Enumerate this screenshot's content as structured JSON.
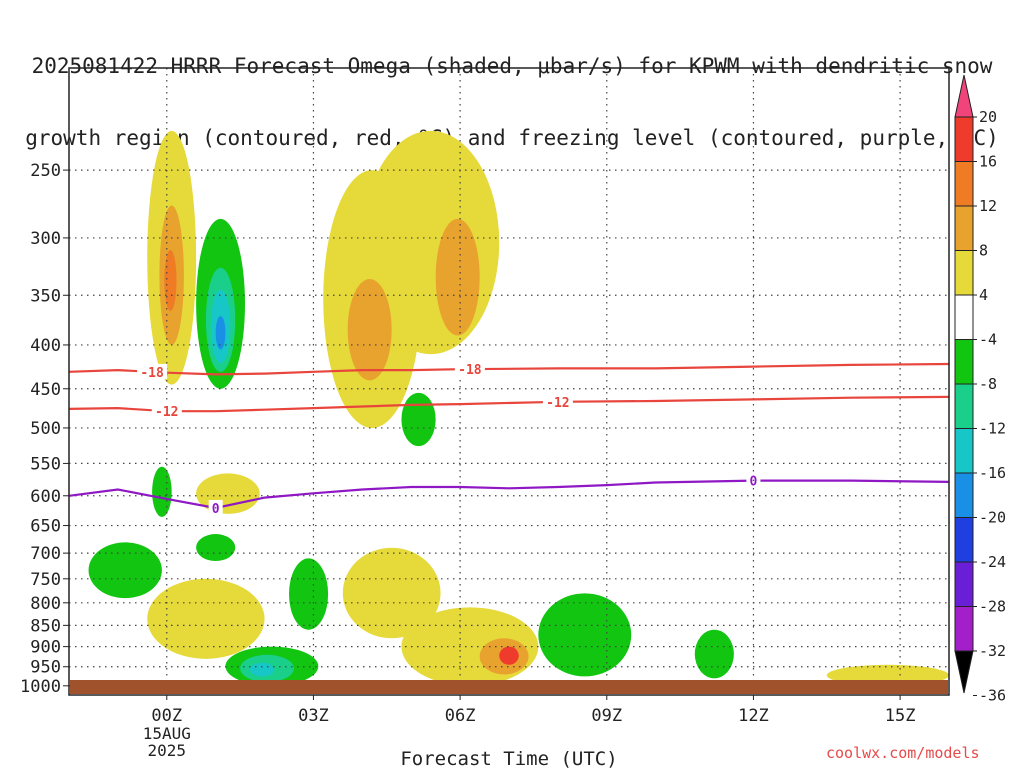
{
  "title_line1": "2025081422 HRRR Forecast Omega (shaded, μbar/s) for KPWM with dendritic snow",
  "title_line2": "growth region (contoured, red, ºC) and freezing level (contoured, purple, ºC)",
  "credit": "coolwx.com/models",
  "chart_data": {
    "type": "heatmap",
    "xlabel": "Forecast Time (UTC)",
    "x_ticks": [
      "00Z",
      "03Z",
      "06Z",
      "09Z",
      "12Z",
      "15Z"
    ],
    "x_tick_hours": [
      0,
      3,
      6,
      9,
      12,
      15
    ],
    "x_date_label": [
      "15AUG",
      "2025"
    ],
    "xlim_hours": [
      -2,
      16
    ],
    "y_ticks": [
      250,
      300,
      350,
      400,
      450,
      500,
      550,
      600,
      650,
      700,
      750,
      800,
      850,
      900,
      950,
      1000
    ],
    "ylim_hPa": [
      190,
      1025
    ],
    "y_scale": "log-pressure",
    "grid": true,
    "colorbar": {
      "labels": [
        "20",
        "16",
        "12",
        "8",
        "4",
        "-4",
        "-8",
        "-12",
        "-16",
        "-20",
        "-24",
        "-28",
        "-32",
        "-36"
      ],
      "bins": [
        {
          "color": "#f0447a"
        },
        {
          "color": "#ef3b2c"
        },
        {
          "color": "#f07b25"
        },
        {
          "color": "#e8a32e"
        },
        {
          "color": "#e6d93a"
        },
        {
          "color": "#ffffff"
        },
        {
          "color": "#11c511"
        },
        {
          "color": "#1acf8a"
        },
        {
          "color": "#17c7c7"
        },
        {
          "color": "#1a8fe6"
        },
        {
          "color": "#1f3fe0"
        },
        {
          "color": "#6a1fd6"
        },
        {
          "color": "#a31fc9"
        },
        {
          "color": "#9a9a9a"
        }
      ]
    },
    "contours_temperature_C": [
      {
        "label": "-18",
        "color": "#e8453c",
        "points": [
          [
            -2,
            430
          ],
          [
            -1,
            428
          ],
          [
            0,
            431
          ],
          [
            1,
            433
          ],
          [
            2,
            432
          ],
          [
            3,
            430
          ],
          [
            4,
            428
          ],
          [
            5,
            428
          ],
          [
            6,
            427
          ],
          [
            8,
            426
          ],
          [
            10,
            426
          ],
          [
            12,
            424
          ],
          [
            14,
            422
          ],
          [
            16,
            421
          ]
        ],
        "label_hours": [
          -0.3,
          6.2
        ]
      },
      {
        "label": "-12",
        "color": "#e8453c",
        "points": [
          [
            -2,
            475
          ],
          [
            -1,
            474
          ],
          [
            0,
            478
          ],
          [
            1,
            478
          ],
          [
            2,
            476
          ],
          [
            3,
            474
          ],
          [
            4,
            472
          ],
          [
            5,
            470
          ],
          [
            6,
            469
          ],
          [
            8,
            466
          ],
          [
            10,
            465
          ],
          [
            12,
            463
          ],
          [
            14,
            461
          ],
          [
            16,
            460
          ]
        ],
        "label_hours": [
          0.0,
          8.0
        ]
      },
      {
        "label": "0",
        "color": "#8f18c4",
        "points": [
          [
            -2,
            600
          ],
          [
            -1,
            590
          ],
          [
            0,
            605
          ],
          [
            1,
            620
          ],
          [
            2,
            603
          ],
          [
            3,
            596
          ],
          [
            4,
            590
          ],
          [
            5,
            586
          ],
          [
            6,
            586
          ],
          [
            7,
            588
          ],
          [
            8,
            586
          ],
          [
            9,
            583
          ],
          [
            10,
            579
          ],
          [
            12,
            576
          ],
          [
            14,
            576
          ],
          [
            16,
            578
          ]
        ],
        "label_hours": [
          1.0,
          12.0
        ]
      }
    ],
    "omega_regions": [
      {
        "level": 4,
        "color": "#e6d93a",
        "hours": [
          -0.4,
          0.6
        ],
        "hPa": [
          225,
          445
        ]
      },
      {
        "level": 8,
        "color": "#e8a32e",
        "hours": [
          -0.15,
          0.35
        ],
        "hPa": [
          275,
          400
        ]
      },
      {
        "level": 12,
        "color": "#f07b25",
        "hours": [
          -0.05,
          0.2
        ],
        "hPa": [
          310,
          365
        ]
      },
      {
        "level": -4,
        "color": "#11c511",
        "hours": [
          0.6,
          1.6
        ],
        "hPa": [
          285,
          450
        ]
      },
      {
        "level": -8,
        "color": "#1acf8a",
        "hours": [
          0.8,
          1.4
        ],
        "hPa": [
          325,
          430
        ]
      },
      {
        "level": -12,
        "color": "#17c7c7",
        "hours": [
          0.9,
          1.3
        ],
        "hPa": [
          345,
          420
        ]
      },
      {
        "level": -16,
        "color": "#1a8fe6",
        "hours": [
          1.0,
          1.2
        ],
        "hPa": [
          370,
          405
        ]
      },
      {
        "level": 4,
        "color": "#e6d93a",
        "hours": [
          3.2,
          5.2
        ],
        "hPa": [
          250,
          500
        ]
      },
      {
        "level": 4,
        "color": "#e6d93a",
        "hours": [
          4.0,
          6.8
        ],
        "hPa": [
          225,
          410
        ]
      },
      {
        "level": 8,
        "color": "#e8a32e",
        "hours": [
          3.7,
          4.6
        ],
        "hPa": [
          335,
          440
        ]
      },
      {
        "level": 8,
        "color": "#e8a32e",
        "hours": [
          5.5,
          6.4
        ],
        "hPa": [
          285,
          390
        ]
      },
      {
        "level": -4,
        "color": "#11c511",
        "hours": [
          4.8,
          5.5
        ],
        "hPa": [
          455,
          525
        ]
      },
      {
        "level": 4,
        "color": "#e6d93a",
        "hours": [
          0.6,
          1.9
        ],
        "hPa": [
          565,
          630
        ]
      },
      {
        "level": -4,
        "color": "#11c511",
        "hours": [
          -0.3,
          0.1
        ],
        "hPa": [
          555,
          635
        ]
      },
      {
        "level": -4,
        "color": "#11c511",
        "hours": [
          -1.6,
          -0.1
        ],
        "hPa": [
          680,
          790
        ]
      },
      {
        "level": -4,
        "color": "#11c511",
        "hours": [
          0.6,
          1.4
        ],
        "hPa": [
          665,
          715
        ]
      },
      {
        "level": 4,
        "color": "#e6d93a",
        "hours": [
          -0.4,
          2.0
        ],
        "hPa": [
          750,
          930
        ]
      },
      {
        "level": -4,
        "color": "#11c511",
        "hours": [
          2.5,
          3.3
        ],
        "hPa": [
          710,
          860
        ]
      },
      {
        "level": -4,
        "color": "#11c511",
        "hours": [
          1.2,
          3.1
        ],
        "hPa": [
          900,
          1000
        ]
      },
      {
        "level": -8,
        "color": "#1acf8a",
        "hours": [
          1.5,
          2.6
        ],
        "hPa": [
          920,
          990
        ]
      },
      {
        "level": -12,
        "color": "#17c7c7",
        "hours": [
          1.7,
          2.2
        ],
        "hPa": [
          940,
          975
        ]
      },
      {
        "level": 4,
        "color": "#e6d93a",
        "hours": [
          3.6,
          5.6
        ],
        "hPa": [
          690,
          880
        ]
      },
      {
        "level": 4,
        "color": "#e6d93a",
        "hours": [
          4.8,
          7.6
        ],
        "hPa": [
          810,
          1000
        ]
      },
      {
        "level": 8,
        "color": "#e8a32e",
        "hours": [
          6.4,
          7.4
        ],
        "hPa": [
          880,
          970
        ]
      },
      {
        "level": 16,
        "color": "#ef3b2c",
        "hours": [
          6.8,
          7.2
        ],
        "hPa": [
          900,
          945
        ]
      },
      {
        "level": -4,
        "color": "#11c511",
        "hours": [
          7.6,
          9.5
        ],
        "hPa": [
          780,
          975
        ]
      },
      {
        "level": -4,
        "color": "#11c511",
        "hours": [
          10.8,
          11.6
        ],
        "hPa": [
          860,
          980
        ]
      },
      {
        "level": 4,
        "color": "#e6d93a",
        "hours": [
          13.5,
          16.0
        ],
        "hPa": [
          945,
          1000
        ]
      }
    ]
  }
}
